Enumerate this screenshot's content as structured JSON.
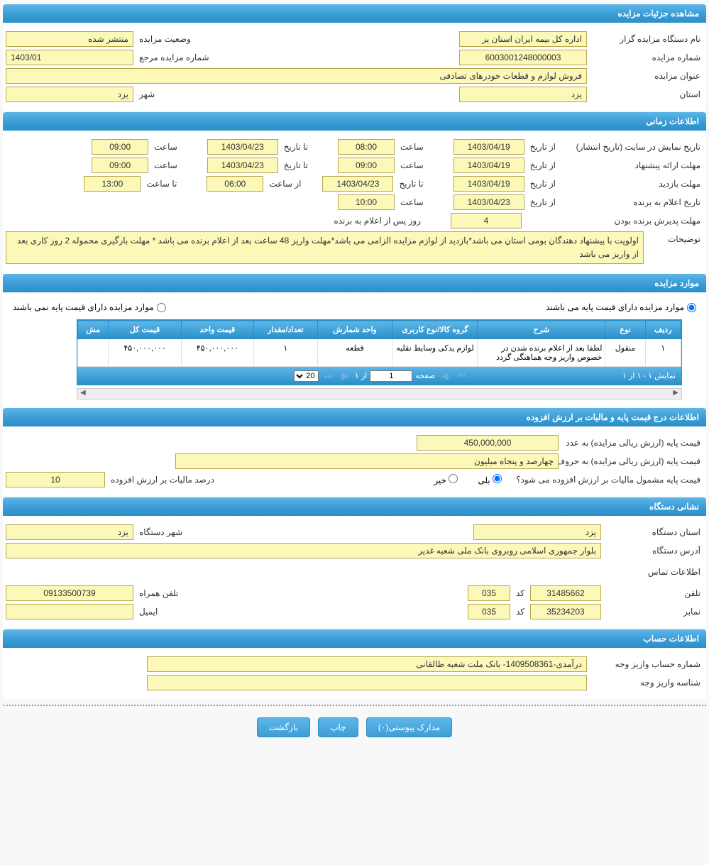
{
  "colors": {
    "header_bg_top": "#5db6e8",
    "header_bg_bottom": "#2a8fc9",
    "field_bg": "#fbf8b8",
    "field_border": "#b8a64e"
  },
  "sections": {
    "details": "مشاهده جزئیات مزایده",
    "time": "اطلاعات زمانی",
    "items": "موارد مزایده",
    "price": "اطلاعات درج قیمت پایه و مالیات بر ارزش افزوده",
    "org": "نشانی دستگاه",
    "account": "اطلاعات حساب"
  },
  "details": {
    "org_label": "نام دستگاه مزایده گزار",
    "org_value": "اداره کل بیمه ایران استان یز",
    "status_label": "وضعیت مزایده",
    "status_value": "منتشر شده",
    "number_label": "شماره مزایده",
    "number_value": "6003001248000003",
    "ref_label": "شماره مزایده مرجع",
    "ref_value": "1403/01",
    "title_label": "عنوان مزایده",
    "title_value": "فروش لوازم و قطعات خودرهای تصادفی",
    "province_label": "استان",
    "province_value": "یزد",
    "city_label": "شهر",
    "city_value": "یزد"
  },
  "time": {
    "publish_label": "تاریخ نمایش در سایت (تاریخ انتشار)",
    "from_date_lbl": "از تاریخ",
    "to_date_lbl": "تا تاریخ",
    "time_lbl": "ساعت",
    "from_time_lbl": "از ساعت",
    "to_time_lbl": "تا ساعت",
    "publish_from_date": "1403/04/19",
    "publish_from_time": "08:00",
    "publish_to_date": "1403/04/23",
    "publish_to_time": "09:00",
    "proposal_label": "مهلت ارائه پیشنهاد",
    "proposal_from_date": "1403/04/19",
    "proposal_from_time": "09:00",
    "proposal_to_date": "1403/04/23",
    "proposal_to_time": "09:00",
    "visit_label": "مهلت بازدید",
    "visit_from_date": "1403/04/19",
    "visit_to_date": "1403/04/23",
    "visit_from_time": "06:00",
    "visit_to_time": "13:00",
    "announce_label": "تاریخ اعلام به برنده",
    "announce_date": "1403/04/23",
    "announce_time": "10:00",
    "winner_accept_label": "مهلت پذیرش برنده بودن",
    "winner_accept_value": "4",
    "winner_accept_suffix": "روز پس از اعلام به برنده",
    "desc_label": "توضیحات",
    "desc_value": "اولویت با پیشنهاد دهندگان بومی استان می باشد*بازدید از لوازم مزایده الزامی می باشد*مهلت واریز 48 ساعت بعد از اعلام برنده می باشد * مهلت بارگیری محموله 2 روز کاری بعد از واریز می باشد"
  },
  "items": {
    "radio_has_base": "موارد مزایده دارای قیمت پایه می باشند",
    "radio_no_base": "موارد مزایده دارای قیمت پایه نمی باشند",
    "columns": [
      "ردیف",
      "نوع",
      "شرح",
      "گروه کالا/نوع کاربری",
      "واحد شمارش",
      "تعداد/مقدار",
      "قیمت واحد",
      "قیمت کل",
      "مش"
    ],
    "rows": [
      {
        "idx": "۱",
        "type": "منقول",
        "desc": "لطفا بعد از اعلام برنده شدن در خصوص واریز وجه هماهنگی گردد",
        "group": "لوازم یدکی وسایط نقلیه",
        "unit": "قطعه",
        "qty": "۱",
        "unit_price": "۴۵۰,۰۰۰,۰۰۰",
        "total": "۴۵۰,۰۰۰,۰۰۰"
      }
    ],
    "pager": {
      "display": "نمایش ۱ - ۱ از ۱",
      "page_lbl": "صفحه",
      "page_val": "1",
      "of_lbl": "از ۱",
      "page_size": "20"
    }
  },
  "price": {
    "base_num_label": "قیمت پایه (ارزش ریالی مزایده) به عدد",
    "base_num_value": "450,000,000",
    "base_word_label": "قیمت پایه (ارزش ریالی مزایده) به حروف",
    "base_word_value": "چهارصد و پنجاه میلیون",
    "vat_question": "قیمت پایه مشمول مالیات بر ارزش افزوده می شود؟",
    "yes": "بلی",
    "no": "خیر",
    "vat_pct_label": "درصد مالیات بر ارزش افزوده",
    "vat_pct_value": "10"
  },
  "org": {
    "province_label": "استان دستگاه",
    "province_value": "یزد",
    "city_label": "شهر دستگاه",
    "city_value": "یزد",
    "address_label": "آدرس دستگاه",
    "address_value": "بلوار جمهوری اسلامی روبروی بانک ملی شعبه غدیر",
    "contact_header": "اطلاعات تماس",
    "phone_label": "تلفن",
    "phone_value": "31485662",
    "code_label": "کد",
    "phone_code": "035",
    "mobile_label": "تلفن همراه",
    "mobile_value": "09133500739",
    "fax_label": "نمابر",
    "fax_value": "35234203",
    "fax_code": "035",
    "email_label": "ایمیل",
    "email_value": ""
  },
  "account": {
    "deposit_acc_label": "شماره حساب واریز وجه",
    "deposit_acc_value": "درآمدی-1409508361- بانک ملت شعبه طالقانی",
    "deposit_id_label": "شناسه واریز وجه",
    "deposit_id_value": ""
  },
  "buttons": {
    "attachments": "مدارک پیوستی(۰)",
    "print": "چاپ",
    "back": "بازگشت"
  }
}
